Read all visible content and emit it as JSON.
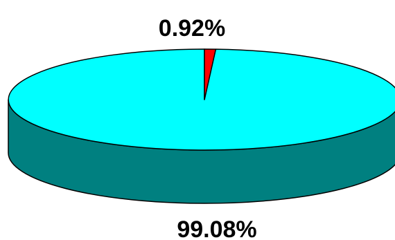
{
  "chart_data": {
    "type": "pie",
    "style": "3d",
    "title": "",
    "legend": "none",
    "slices": [
      {
        "label": "",
        "value": 0.92,
        "display": "0.92%",
        "color": "#ff0000",
        "side_color": "#8b0000"
      },
      {
        "label": "",
        "value": 99.08,
        "display": "99.08%",
        "color": "#00ffff",
        "side_color": "#008080"
      }
    ]
  }
}
